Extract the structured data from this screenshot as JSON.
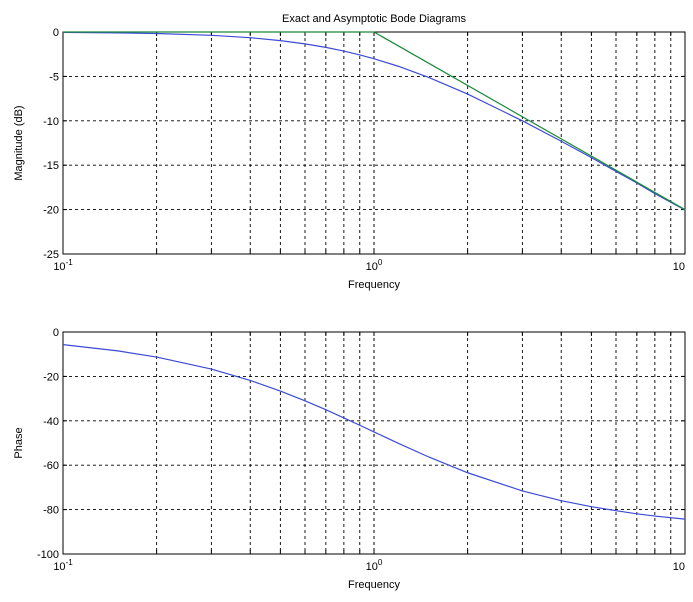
{
  "title": "Exact and Asymptotic Bode Diagrams",
  "colors": {
    "exact": "#3b4bd6",
    "asymptote": "#1a8a3a",
    "axes": "#000000"
  },
  "chart_data": [
    {
      "type": "line",
      "title": "Exact and Asymptotic Bode Diagrams",
      "xlabel": "Frequency",
      "ylabel": "Magnitude (dB)",
      "xscale": "log",
      "xlim": [
        0.1,
        10
      ],
      "ylim": [
        -25,
        0
      ],
      "grid": true,
      "xticks": [
        {
          "base": "10",
          "exp": "-1",
          "value": 0.1
        },
        {
          "base": "10",
          "exp": "0",
          "value": 1
        },
        {
          "base": "10",
          "exp": "",
          "value": 10
        }
      ],
      "yticks": [
        "0",
        "-5",
        "-10",
        "-15",
        "-20",
        "-25"
      ],
      "series": [
        {
          "color": "#3b4bd6",
          "x": [
            0.1,
            0.15,
            0.2,
            0.3,
            0.4,
            0.5,
            0.6,
            0.7,
            0.8,
            0.9,
            1,
            1.2,
            1.5,
            2,
            3,
            4,
            5,
            6,
            7,
            8,
            10
          ],
          "y": [
            -0.04,
            -0.1,
            -0.17,
            -0.37,
            -0.64,
            -0.97,
            -1.34,
            -1.73,
            -2.15,
            -2.58,
            -3.01,
            -3.87,
            -5.12,
            -6.99,
            -10.0,
            -12.3,
            -14.15,
            -15.7,
            -17.0,
            -18.2,
            -20.04
          ]
        },
        {
          "color": "#1a8a3a",
          "x": [
            0.1,
            1,
            10
          ],
          "y": [
            0,
            0,
            -20
          ]
        }
      ]
    },
    {
      "type": "line",
      "title": "",
      "xlabel": "Frequency",
      "ylabel": "Phase",
      "xscale": "log",
      "xlim": [
        0.1,
        10
      ],
      "ylim": [
        -100,
        0
      ],
      "grid": true,
      "xticks": [
        {
          "base": "10",
          "exp": "-1",
          "value": 0.1
        },
        {
          "base": "10",
          "exp": "0",
          "value": 1
        },
        {
          "base": "10",
          "exp": "",
          "value": 10
        }
      ],
      "yticks": [
        "0",
        "-20",
        "-40",
        "-60",
        "-80",
        "-100"
      ],
      "series": [
        {
          "color": "#3b4bd6",
          "x": [
            0.1,
            0.15,
            0.2,
            0.3,
            0.4,
            0.5,
            0.6,
            0.7,
            0.8,
            0.9,
            1,
            1.2,
            1.5,
            2,
            3,
            4,
            5,
            6,
            7,
            8,
            10
          ],
          "y": [
            -5.7,
            -8.5,
            -11.3,
            -16.7,
            -21.8,
            -26.6,
            -31.0,
            -35.0,
            -38.7,
            -42.0,
            -45.0,
            -50.2,
            -56.3,
            -63.4,
            -71.6,
            -76.0,
            -78.7,
            -80.5,
            -81.9,
            -82.9,
            -84.3
          ]
        }
      ]
    }
  ]
}
